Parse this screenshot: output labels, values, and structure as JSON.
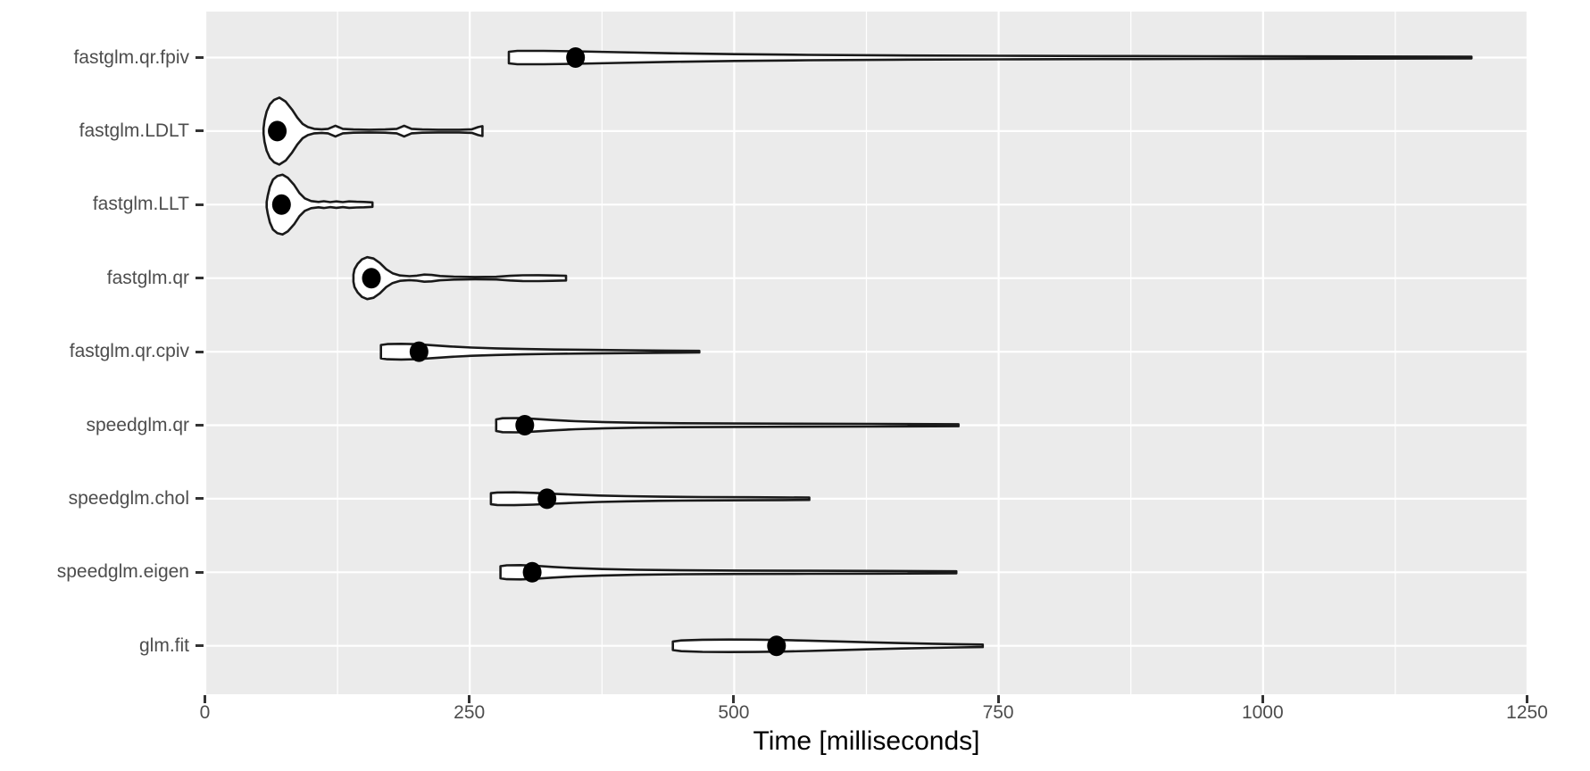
{
  "chart_data": {
    "type": "violin",
    "orientation": "horizontal",
    "title": "",
    "xlabel": "Time [milliseconds]",
    "ylabel": "",
    "xlim": [
      0,
      1250
    ],
    "x_major_ticks": [
      0,
      250,
      500,
      750,
      1000,
      1250
    ],
    "x_minor_gridlines": [
      125,
      375,
      625,
      875,
      1125
    ],
    "grid": "on",
    "legend": "none",
    "categories": [
      "fastglm.qr.fpiv",
      "fastglm.LDLT",
      "fastglm.LLT",
      "fastglm.qr",
      "fastglm.qr.cpiv",
      "speedglm.qr",
      "speedglm.chol",
      "speedglm.eigen",
      "glm.fit"
    ],
    "series": [
      {
        "label": "fastglm.qr.fpiv",
        "min_ms": 287,
        "median_ms": 350,
        "max_ms": 1197,
        "outline": [
          [
            287,
            6.5
          ],
          [
            295,
            7.5
          ],
          [
            320,
            7.5
          ],
          [
            350,
            7
          ],
          [
            390,
            6
          ],
          [
            440,
            4.8
          ],
          [
            500,
            3.8
          ],
          [
            570,
            3
          ],
          [
            650,
            2.4
          ],
          [
            750,
            2
          ],
          [
            850,
            1.7
          ],
          [
            950,
            1.5
          ],
          [
            1050,
            1.3
          ],
          [
            1197,
            0.9
          ]
        ]
      },
      {
        "label": "fastglm.LDLT",
        "min_ms": 55,
        "median_ms": 68,
        "max_ms": 262,
        "outline": [
          [
            55,
            3
          ],
          [
            56,
            12
          ],
          [
            58,
            22
          ],
          [
            61,
            30
          ],
          [
            65,
            35
          ],
          [
            70,
            37.5
          ],
          [
            76,
            33
          ],
          [
            82,
            24
          ],
          [
            87,
            15
          ],
          [
            92,
            8
          ],
          [
            97,
            4.5
          ],
          [
            103,
            2.5
          ],
          [
            110,
            2
          ],
          [
            116,
            2.5
          ],
          [
            123,
            6
          ],
          [
            130,
            2.5
          ],
          [
            140,
            1.8
          ],
          [
            155,
            1.5
          ],
          [
            170,
            1.8
          ],
          [
            181,
            2.5
          ],
          [
            188,
            6
          ],
          [
            195,
            2.5
          ],
          [
            205,
            1.8
          ],
          [
            220,
            1.5
          ],
          [
            240,
            1.5
          ],
          [
            252,
            2
          ],
          [
            258,
            4.5
          ],
          [
            262,
            5.5
          ]
        ]
      },
      {
        "label": "fastglm.LLT",
        "min_ms": 58,
        "median_ms": 72,
        "max_ms": 158,
        "outline": [
          [
            58,
            3
          ],
          [
            59,
            10
          ],
          [
            61,
            20
          ],
          [
            64,
            28
          ],
          [
            68,
            32
          ],
          [
            73,
            33.5
          ],
          [
            78,
            30
          ],
          [
            84,
            22
          ],
          [
            89,
            13
          ],
          [
            94,
            7
          ],
          [
            100,
            4
          ],
          [
            107,
            3
          ],
          [
            112,
            3.8
          ],
          [
            118,
            2.8
          ],
          [
            124,
            3.6
          ],
          [
            130,
            2.8
          ],
          [
            136,
            3.6
          ],
          [
            143,
            3.2
          ],
          [
            150,
            3
          ],
          [
            158,
            2.5
          ]
        ]
      },
      {
        "label": "fastglm.qr",
        "min_ms": 140,
        "median_ms": 157,
        "max_ms": 341,
        "outline": [
          [
            140,
            4
          ],
          [
            141,
            10
          ],
          [
            144,
            16
          ],
          [
            148,
            21
          ],
          [
            153,
            23.5
          ],
          [
            159,
            22
          ],
          [
            165,
            17
          ],
          [
            171,
            10
          ],
          [
            177,
            5.5
          ],
          [
            184,
            3
          ],
          [
            193,
            2.2
          ],
          [
            200,
            2.8
          ],
          [
            207,
            4
          ],
          [
            214,
            3.6
          ],
          [
            222,
            2.4
          ],
          [
            235,
            1.6
          ],
          [
            255,
            1.3
          ],
          [
            275,
            1.5
          ],
          [
            288,
            2.6
          ],
          [
            300,
            3.2
          ],
          [
            315,
            3.3
          ],
          [
            328,
            3
          ],
          [
            341,
            2.6
          ]
        ]
      },
      {
        "label": "fastglm.qr.cpiv",
        "min_ms": 166,
        "median_ms": 202,
        "max_ms": 467,
        "outline": [
          [
            166,
            7.5
          ],
          [
            172,
            8.5
          ],
          [
            185,
            8.8
          ],
          [
            200,
            8.4
          ],
          [
            215,
            7.2
          ],
          [
            232,
            5.8
          ],
          [
            252,
            4.6
          ],
          [
            275,
            3.7
          ],
          [
            300,
            3
          ],
          [
            330,
            2.4
          ],
          [
            365,
            2
          ],
          [
            400,
            1.6
          ],
          [
            435,
            1.2
          ],
          [
            467,
            0.9
          ]
        ]
      },
      {
        "label": "speedglm.qr",
        "min_ms": 275,
        "median_ms": 302,
        "max_ms": 712,
        "outline": [
          [
            275,
            6.5
          ],
          [
            281,
            7.8
          ],
          [
            295,
            8
          ],
          [
            310,
            7.2
          ],
          [
            328,
            5.8
          ],
          [
            350,
            4.5
          ],
          [
            378,
            3.4
          ],
          [
            410,
            2.7
          ],
          [
            450,
            2.2
          ],
          [
            500,
            1.9
          ],
          [
            560,
            1.7
          ],
          [
            630,
            1.5
          ],
          [
            712,
            1.1
          ]
        ]
      },
      {
        "label": "speedglm.chol",
        "min_ms": 270,
        "median_ms": 323,
        "max_ms": 571,
        "outline": [
          [
            270,
            6.2
          ],
          [
            276,
            7
          ],
          [
            292,
            7.2
          ],
          [
            310,
            6.6
          ],
          [
            328,
            5.6
          ],
          [
            348,
            4.6
          ],
          [
            372,
            3.6
          ],
          [
            398,
            2.9
          ],
          [
            430,
            2.3
          ],
          [
            470,
            1.9
          ],
          [
            515,
            1.7
          ],
          [
            545,
            1.5
          ],
          [
            571,
            1.3
          ]
        ]
      },
      {
        "label": "speedglm.eigen",
        "min_ms": 279,
        "median_ms": 309,
        "max_ms": 710,
        "outline": [
          [
            279,
            6.8
          ],
          [
            285,
            7.8
          ],
          [
            298,
            8
          ],
          [
            312,
            7.3
          ],
          [
            328,
            6
          ],
          [
            348,
            4.7
          ],
          [
            375,
            3.6
          ],
          [
            408,
            2.8
          ],
          [
            450,
            2.2
          ],
          [
            505,
            1.9
          ],
          [
            570,
            1.7
          ],
          [
            640,
            1.5
          ],
          [
            710,
            1.1
          ]
        ]
      },
      {
        "label": "glm.fit",
        "min_ms": 442,
        "median_ms": 540,
        "max_ms": 735,
        "outline": [
          [
            442,
            4.8
          ],
          [
            450,
            6
          ],
          [
            470,
            6.8
          ],
          [
            495,
            7
          ],
          [
            520,
            6.9
          ],
          [
            545,
            6.5
          ],
          [
            570,
            5.8
          ],
          [
            598,
            4.9
          ],
          [
            628,
            3.9
          ],
          [
            658,
            3
          ],
          [
            688,
            2.3
          ],
          [
            712,
            1.8
          ],
          [
            735,
            1.4
          ]
        ]
      }
    ],
    "colors": {
      "panel_bg": "#EBEBEB",
      "gridline": "#FFFFFF",
      "violin_fill": "#FFFFFF",
      "violin_stroke": "#1A1A1A",
      "point": "#000000",
      "axis_text": "#4D4D4D",
      "axis_title": "#000000",
      "tick_mark": "#333333"
    }
  }
}
